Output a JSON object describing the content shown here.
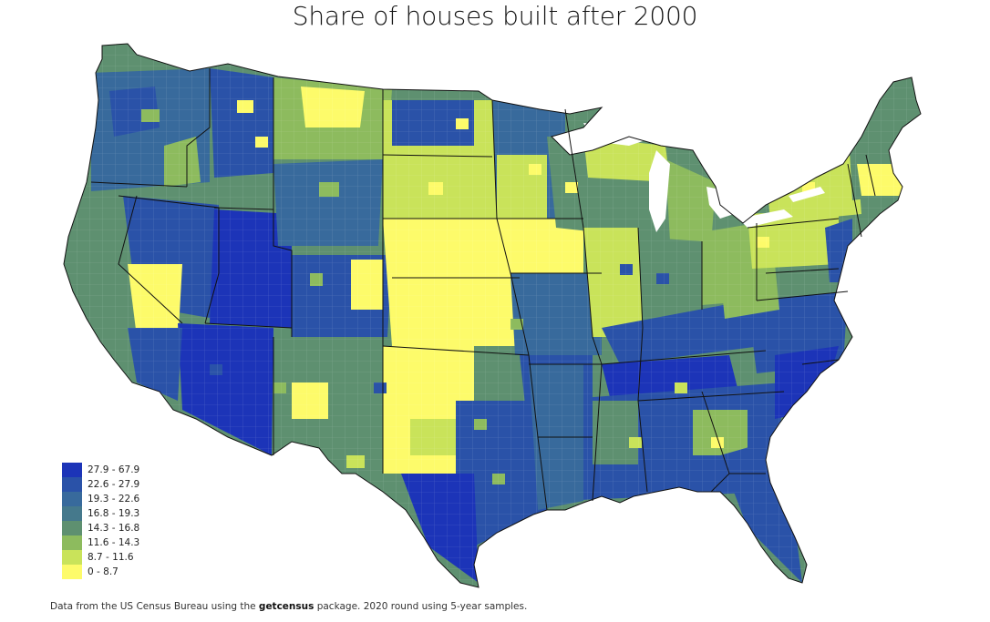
{
  "title": "Share of houses built after 2000",
  "legend": [
    {
      "label": "27.9 - 67.9",
      "color": "#1c34b8"
    },
    {
      "label": "22.6 - 27.9",
      "color": "#2a52a8"
    },
    {
      "label": "19.3 - 22.6",
      "color": "#386a9c"
    },
    {
      "label": "16.8 - 19.3",
      "color": "#45798c"
    },
    {
      "label": "14.3 - 16.8",
      "color": "#5e9070"
    },
    {
      "label": "11.6 - 14.3",
      "color": "#8dbb5e"
    },
    {
      "label": "8.7 - 11.6",
      "color": "#c9e35a"
    },
    {
      "label": "0 - 8.7",
      "color": "#fdfb6a"
    }
  ],
  "footer": {
    "prefix": "Data from the US Census Bureau using the ",
    "package": "getcensus",
    "suffix": " package. 2020 round using 5-year samples."
  }
}
